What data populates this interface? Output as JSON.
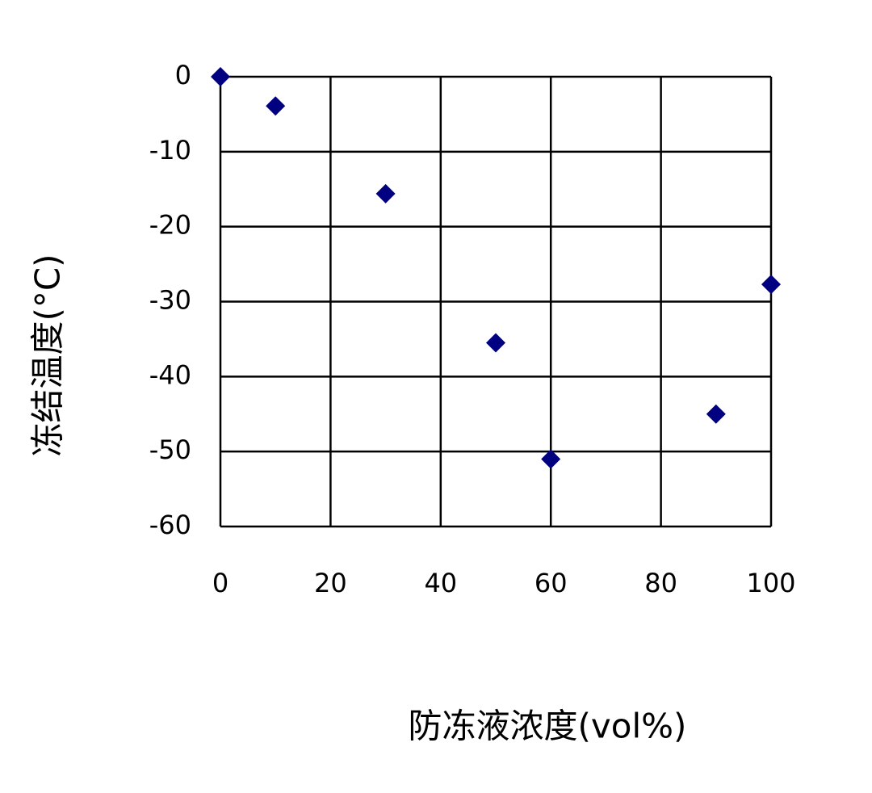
{
  "chart_data": {
    "type": "scatter",
    "x_label": "防冻液浓度(vol%)",
    "y_label": "冻结温度(°C)",
    "x": [
      0,
      10,
      30,
      50,
      60,
      90,
      100
    ],
    "series": [
      {
        "color": "#000080",
        "values": [
          0,
          -3.9,
          -15.6,
          -35.5,
          -51,
          -45,
          -27.7
        ]
      }
    ],
    "xlim": [
      0,
      100
    ],
    "xticks": [
      0,
      20,
      40,
      60,
      80,
      100
    ],
    "ylim": [
      -60,
      0
    ],
    "yticks": [
      0,
      -10,
      -20,
      -30,
      -40,
      -50,
      -60
    ],
    "grid": true,
    "marker": "diamond"
  }
}
